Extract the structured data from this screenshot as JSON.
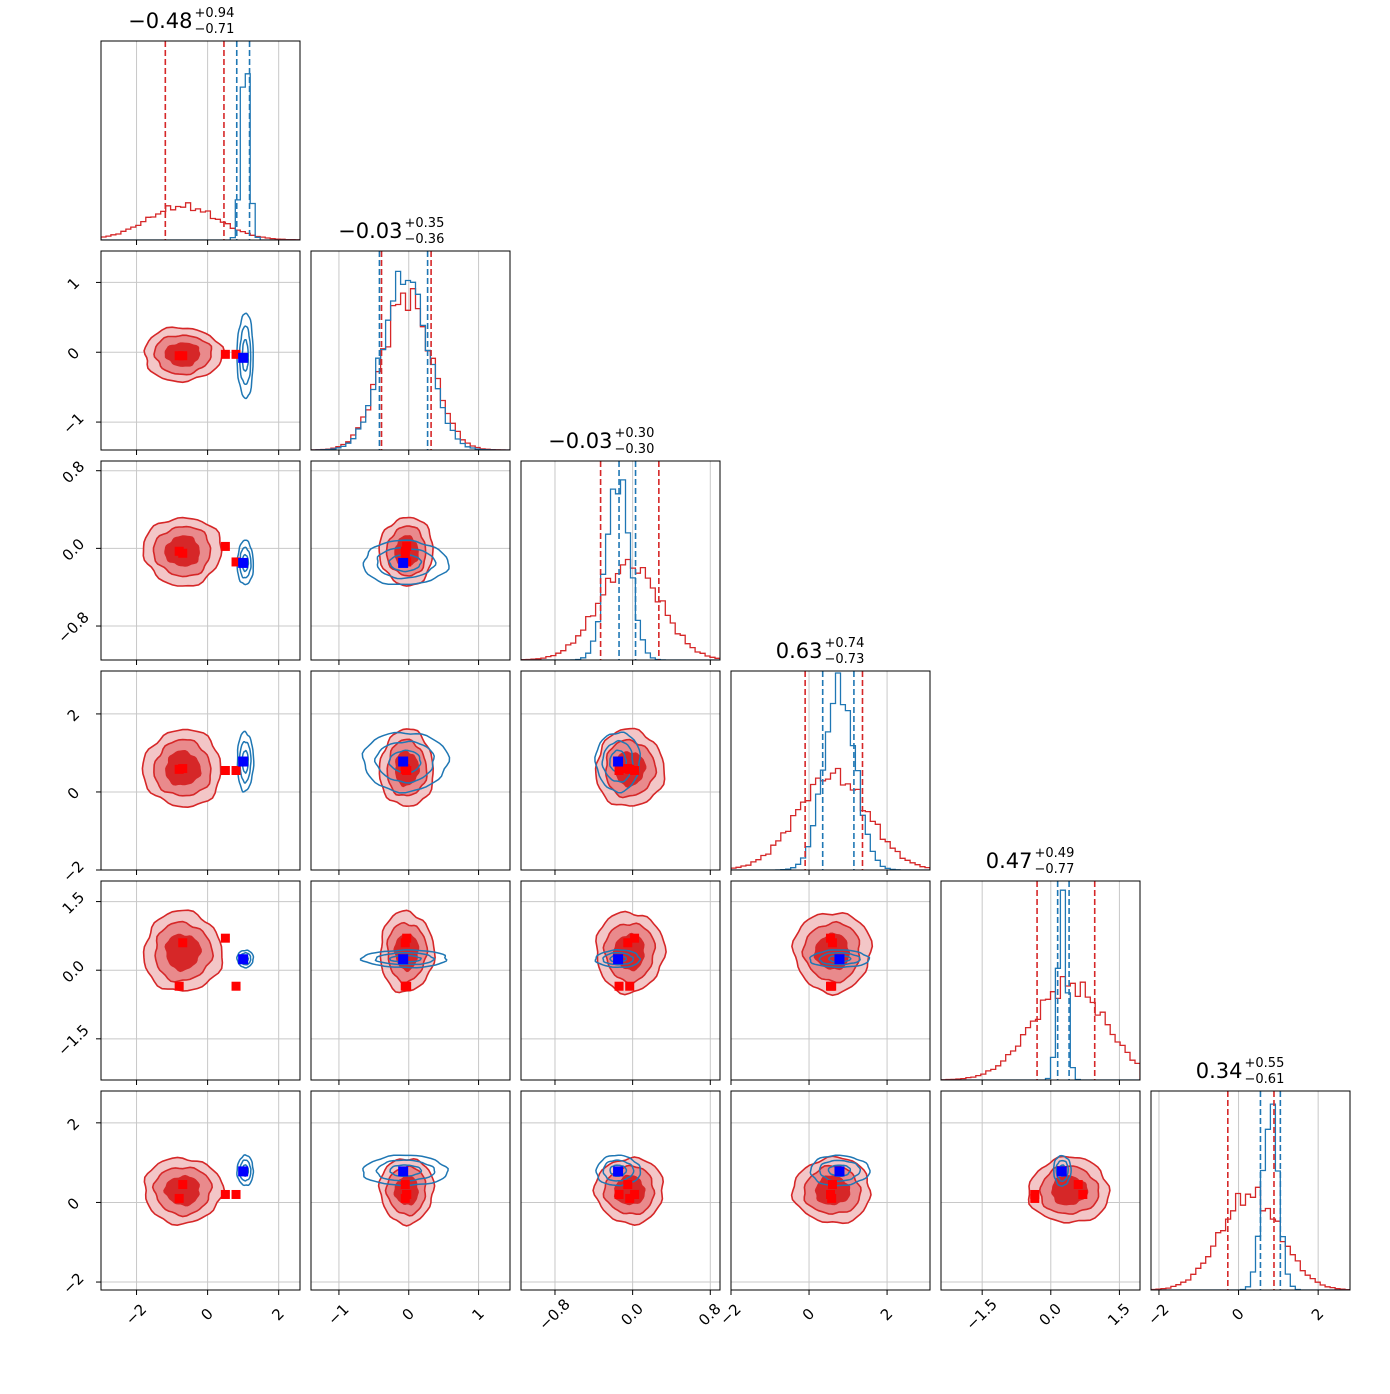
{
  "chart_data": {
    "type": "corner",
    "parameters": 6,
    "grid": true,
    "colors": {
      "posterior_a": "#d62728",
      "posterior_b": "#1f77b4",
      "truth_marker": "#0000ff",
      "secondary_marker": "#ff0000"
    },
    "titles": [
      {
        "param": 0,
        "median": "−0.48",
        "plus": "+0.94",
        "minus": "−0.71"
      },
      {
        "param": 1,
        "median": "−0.03",
        "plus": "+0.35",
        "minus": "−0.36"
      },
      {
        "param": 2,
        "median": "−0.03",
        "plus": "+0.30",
        "minus": "−0.30"
      },
      {
        "param": 3,
        "median": "0.63",
        "plus": "+0.74",
        "minus": "−0.73"
      },
      {
        "param": 4,
        "median": "0.47",
        "plus": "+0.49",
        "minus": "−0.77"
      },
      {
        "param": 5,
        "median": "0.34",
        "plus": "+0.55",
        "minus": "−0.61"
      }
    ],
    "x_ticks": [
      {
        "param": 0,
        "values": [
          -2,
          0,
          2
        ],
        "labels": [
          "−2",
          "0",
          "2"
        ]
      },
      {
        "param": 1,
        "values": [
          -1,
          0,
          1
        ],
        "labels": [
          "−1",
          "0",
          "1"
        ]
      },
      {
        "param": 2,
        "values": [
          -0.8,
          0.0,
          0.8
        ],
        "labels": [
          "−0.8",
          "0.0",
          "0.8"
        ]
      },
      {
        "param": 3,
        "values": [
          -2,
          0,
          2
        ],
        "labels": [
          "−2",
          "0",
          "2"
        ]
      },
      {
        "param": 4,
        "values": [
          -1.5,
          0.0,
          1.5
        ],
        "labels": [
          "−1.5",
          "0.0",
          "1.5"
        ]
      },
      {
        "param": 5,
        "values": [
          -2,
          0,
          2
        ],
        "labels": [
          "−2",
          "0",
          "2"
        ]
      }
    ],
    "y_ticks": [
      {
        "param": 1,
        "values": [
          -1,
          0,
          1
        ],
        "labels": [
          "−1",
          "0",
          "1"
        ]
      },
      {
        "param": 2,
        "values": [
          -0.8,
          0.0,
          0.8
        ],
        "labels": [
          "−0.8",
          "0.0",
          "0.8"
        ]
      },
      {
        "param": 3,
        "values": [
          -2,
          0,
          2
        ],
        "labels": [
          "−2",
          "0",
          "2"
        ]
      },
      {
        "param": 4,
        "values": [
          -1.5,
          0.0,
          1.5
        ],
        "labels": [
          "−1.5",
          "0.0",
          "1.5"
        ]
      },
      {
        "param": 5,
        "values": [
          -2,
          0,
          2
        ],
        "labels": [
          "−2",
          "0",
          "2"
        ]
      }
    ],
    "ranges": [
      [
        -3.0,
        2.6
      ],
      [
        -1.4,
        1.45
      ],
      [
        -1.15,
        0.9
      ],
      [
        -2.0,
        3.1
      ],
      [
        -2.4,
        1.95
      ],
      [
        -2.2,
        2.8
      ]
    ],
    "posterior_a": {
      "medians": [
        -0.48,
        -0.03,
        -0.03,
        0.63,
        0.47,
        0.34
      ],
      "q16": [
        -1.19,
        -0.39,
        -0.33,
        -0.1,
        -0.3,
        -0.27
      ],
      "q84": [
        0.46,
        0.32,
        0.27,
        1.37,
        0.96,
        0.89
      ],
      "sigmas": [
        1.0,
        0.35,
        0.32,
        0.9,
        0.8,
        0.75
      ],
      "centers": [
        -0.7,
        -0.03,
        -0.03,
        0.6,
        0.4,
        0.3
      ]
    },
    "posterior_b": {
      "medians": [
        1.06,
        -0.05,
        -0.15,
        0.78,
        0.25,
        0.8
      ],
      "q16": [
        0.82,
        -0.42,
        -0.14,
        0.35,
        0.15,
        0.55
      ],
      "q84": [
        1.18,
        0.27,
        0.03,
        1.15,
        0.4,
        1.05
      ],
      "sigmas": [
        0.12,
        0.32,
        0.12,
        0.4,
        0.1,
        0.2
      ]
    },
    "truth": [
      1.0,
      -0.08,
      -0.15,
      0.78,
      0.24,
      0.78
    ],
    "secondary_points": [
      [
        -0.7,
        -0.05,
        -0.05,
        0.6,
        0.6,
        0.45
      ],
      [
        -0.8,
        -0.05,
        -0.03,
        0.58,
        -0.35,
        0.1
      ],
      [
        0.5,
        -0.03,
        0.02,
        0.55,
        0.7,
        0.2
      ],
      [
        0.8,
        -0.03,
        -0.14,
        0.55,
        -0.35,
        0.2
      ]
    ]
  }
}
